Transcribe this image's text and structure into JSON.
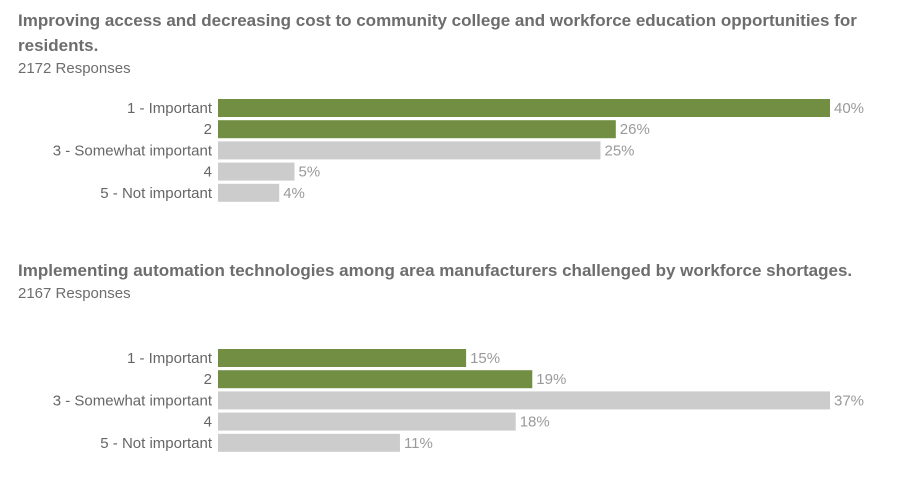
{
  "colors": {
    "important": "#728e42",
    "other": "#cccccc"
  },
  "chart_data": [
    {
      "type": "bar",
      "orientation": "horizontal",
      "title": "Improving access and decreasing cost to community college and workforce education opportunities for residents.",
      "subtitle": "2172 Responses",
      "categories": [
        "1 - Important",
        "2",
        "3 - Somewhat important",
        "4",
        "5 - Not important"
      ],
      "values": [
        40,
        26,
        25,
        5,
        4
      ],
      "value_labels": [
        "40%",
        "26%",
        "25%",
        "5%",
        "4%"
      ],
      "bar_colors": [
        "#728e42",
        "#728e42",
        "#cccccc",
        "#cccccc",
        "#cccccc"
      ],
      "xlim": [
        0,
        40
      ]
    },
    {
      "type": "bar",
      "orientation": "horizontal",
      "title": "Implementing automation technologies among area manufacturers challenged by workforce shortages.",
      "subtitle": "2167 Responses",
      "categories": [
        "1 - Important",
        "2",
        "3 - Somewhat important",
        "4",
        "5 - Not important"
      ],
      "values": [
        15,
        19,
        37,
        18,
        11
      ],
      "value_labels": [
        "15%",
        "19%",
        "37%",
        "18%",
        "11%"
      ],
      "bar_colors": [
        "#728e42",
        "#728e42",
        "#cccccc",
        "#cccccc",
        "#cccccc"
      ],
      "xlim": [
        0,
        37
      ]
    }
  ]
}
